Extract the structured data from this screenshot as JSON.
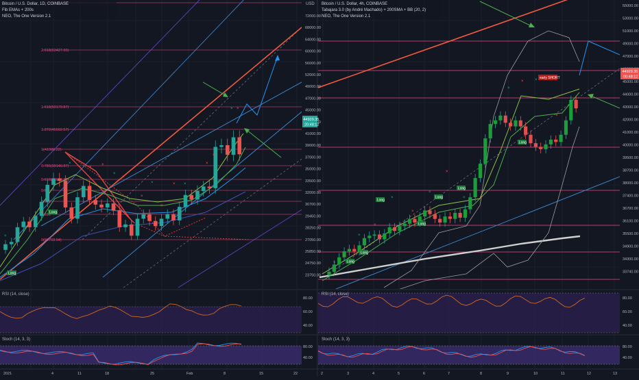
{
  "left_chart": {
    "title": "Bitcoin / U.S. Dollar, 1D, COINBASE",
    "indicators": [
      "Fib EMAs + 200s",
      "NEO, The One Version 2.1"
    ],
    "fib_levels": [
      {
        "label": "2.618(63427.95)",
        "price": 63427.95
      },
      {
        "label": "1.618(50179.87)",
        "price": 50179.87
      },
      {
        "label": "1.272(45592.57)",
        "price": 45592.57
      },
      {
        "label": "1(41986.22)",
        "price": 41986.22
      },
      {
        "label": "0.786(39146.87)",
        "price": 39146.87
      },
      {
        "label": "0.618(36928.32)",
        "price": 36928.32
      },
      {
        "label": "0.5",
        "price": 35371.04
      },
      {
        "label": "0.382",
        "price": 33813.76
      },
      {
        "label": "0.236",
        "price": 31887.91
      },
      {
        "label": "0(28753.54)",
        "price": 28753.54
      }
    ],
    "signals": [
      {
        "label": "Long",
        "date_index": 1
      },
      {
        "label": "Long",
        "date_index": 9
      }
    ],
    "x_ticks": [
      "2021",
      "4",
      "11",
      "18",
      "25",
      "Feb",
      "8",
      "15",
      "22"
    ],
    "rsi_label": "RSI (14, close)",
    "stoch_label": "Stoch (14, 3, 3)"
  },
  "right_chart": {
    "title": "Bitcoin / U.S. Dollar, 4h, COINBASE",
    "indicators": [
      "Tabajara 3.0 (by André Machado) + 200SMA + BB (20, 2)",
      "NEO, The One Version 2.1"
    ],
    "signals": [
      {
        "label": "Long",
        "date_index": 0
      },
      {
        "label": "Long",
        "date_index": 1
      },
      {
        "label": "Long",
        "date_index": 3
      },
      {
        "label": "Long",
        "date_index": 4
      },
      {
        "label": "Long",
        "date_index": 5
      },
      {
        "label": "Long",
        "date_index": 7
      },
      {
        "label": "Long",
        "date_index": 8
      },
      {
        "label": "early SHORT",
        "date_index": 9
      }
    ],
    "x_ticks": [
      "2",
      "3",
      "4",
      "5",
      "6",
      "7",
      "8",
      "9",
      "10",
      "11",
      "12",
      "13"
    ],
    "rsi_label": "RSI (14, close)",
    "stoch_label": "Stoch (14, 3, 3)"
  },
  "center_axis": {
    "currency": "USD",
    "price_ticks": [
      "72000.00",
      "68000.00",
      "64000.00",
      "60000.00",
      "56000.00",
      "52000.00",
      "49000.00",
      "47000.00",
      "45000.00",
      "43000.00",
      "41000.00",
      "39000.00",
      "37000.00",
      "35000.00",
      "33500.00",
      "32000.00",
      "30700.00",
      "29450.00",
      "28250.00",
      "27050.00",
      "25850.00",
      "24750.00",
      "23750.00"
    ],
    "last_price_label": "44929.35",
    "countdown_label": "20:48:12",
    "rsi_ticks": [
      "80.00",
      "60.00",
      "40.00"
    ],
    "stoch_ticks": [
      "80.00",
      "40.00"
    ]
  },
  "right_axis": {
    "price_ticks": [
      "55000.00",
      "53000.00",
      "51000.00",
      "49000.00",
      "47000.00",
      "46000.00",
      "45000.00",
      "44000.00",
      "43000.00",
      "42000.00",
      "41000.00",
      "40000.00",
      "39500.00",
      "38700.00",
      "38000.00",
      "37400.00",
      "36700.00",
      "36100.00",
      "35500.00",
      "34900.00",
      "34300.00",
      "33740.00"
    ],
    "last_price_label": "44929.35",
    "countdown_label": "00:48:12",
    "rsi_ticks": [
      "80.00",
      "60.00",
      "40.00"
    ],
    "stoch_ticks": [
      "80.00",
      "40.00"
    ]
  },
  "chart_data": [
    {
      "type": "candlestick",
      "title": "Bitcoin / U.S. Dollar, 1D, COINBASE",
      "timeframe": "1D",
      "x_ticks": [
        "2021",
        "4",
        "11",
        "18",
        "25",
        "Feb",
        "8",
        "15",
        "22"
      ],
      "approx_close_path": [
        29000,
        29400,
        32000,
        33000,
        32000,
        34000,
        36500,
        39500,
        40600,
        40200,
        35500,
        33500,
        37300,
        39300,
        36800,
        36000,
        35500,
        36200,
        35000,
        32000,
        32500,
        30500,
        33500,
        34300,
        33100,
        32200,
        33500,
        34300,
        33200,
        35600,
        37700,
        36900,
        38400,
        39200,
        38900,
        46200,
        46500,
        44800,
        47900,
        44900
      ],
      "last_price": 44929.35
    },
    {
      "type": "candlestick",
      "title": "Bitcoin / U.S. Dollar, 4h, COINBASE",
      "timeframe": "4h",
      "x_ticks": [
        "2",
        "3",
        "4",
        "5",
        "6",
        "7",
        "8",
        "9",
        "10",
        "11",
        "12",
        "13"
      ],
      "approx_close_path": [
        34200,
        34800,
        35400,
        35900,
        36100,
        35900,
        36400,
        37000,
        37200,
        37300,
        36900,
        37400,
        37900,
        37600,
        38000,
        38200,
        38600,
        38300,
        38800,
        39300,
        39000,
        38600,
        38300,
        38800,
        38600,
        39100,
        38700,
        39400,
        40400,
        42000,
        43200,
        45300,
        46500,
        46800,
        47200,
        46600,
        46300,
        46800,
        46300,
        45600,
        44900,
        44600,
        44400,
        44800,
        45200,
        45000,
        45600,
        46800,
        48500,
        47800
      ],
      "last_price": 44929.35
    }
  ]
}
